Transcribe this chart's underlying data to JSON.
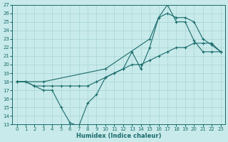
{
  "xlabel": "Humidex (Indice chaleur)",
  "xlim": [
    -0.5,
    23.5
  ],
  "ylim": [
    13,
    27
  ],
  "yticks": [
    13,
    14,
    15,
    16,
    17,
    18,
    19,
    20,
    21,
    22,
    23,
    24,
    25,
    26,
    27
  ],
  "xticks": [
    0,
    1,
    2,
    3,
    4,
    5,
    6,
    7,
    8,
    9,
    10,
    11,
    12,
    13,
    14,
    15,
    16,
    17,
    18,
    19,
    20,
    21,
    22,
    23
  ],
  "bg_color": "#c8eaea",
  "line_color": "#1a6b6b",
  "grid_color": "#a8d4d4",
  "line1_x": [
    0,
    1,
    2,
    3,
    4,
    5,
    6,
    7,
    8,
    9,
    10,
    11,
    12,
    13,
    14,
    15,
    16,
    17,
    18,
    19,
    20,
    21,
    22,
    23
  ],
  "line1_y": [
    18,
    18,
    17.5,
    17,
    17,
    15,
    13.2,
    12.8,
    15.5,
    16.5,
    18.5,
    19.0,
    19.5,
    21.5,
    19.5,
    22.0,
    25.5,
    27.0,
    25.0,
    25.0,
    22.8,
    21.5,
    21.5,
    21.5
  ],
  "line2_x": [
    0,
    3,
    10,
    15,
    16,
    17,
    18,
    19,
    20,
    21,
    22,
    23
  ],
  "line2_y": [
    18.0,
    18.0,
    19.5,
    23.0,
    25.5,
    26.0,
    25.5,
    25.5,
    25.0,
    23.0,
    22.3,
    21.5
  ],
  "line3_x": [
    0,
    1,
    2,
    3,
    4,
    5,
    6,
    7,
    8,
    9,
    10,
    11,
    12,
    13,
    14,
    15,
    16,
    17,
    18,
    19,
    20,
    21,
    22,
    23
  ],
  "line3_y": [
    18.0,
    18.0,
    17.5,
    17.5,
    17.5,
    17.5,
    17.5,
    17.5,
    17.5,
    18.0,
    18.5,
    19.0,
    19.5,
    20.0,
    20.0,
    20.5,
    21.0,
    21.5,
    22.0,
    22.0,
    22.5,
    22.5,
    22.5,
    21.5
  ]
}
